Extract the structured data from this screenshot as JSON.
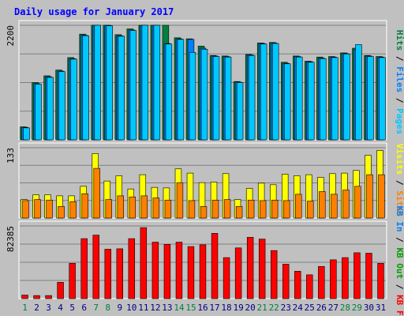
{
  "colors": {
    "background": "#c0c0c0",
    "frame": "#ffffff",
    "title": "#0000ff",
    "grid": "#808080",
    "pages": "#00c8ff",
    "files": "#0080ff",
    "hits": "#008040",
    "visits": "#ffff00",
    "sites": "#ff8000",
    "kb_f": "#ff0000",
    "kb_in": "#0080ff",
    "kb_out": "#00a000",
    "weekend_day": "#008040",
    "weekday_day": "#000080"
  },
  "chart_data": {
    "type": "bar",
    "title": "Daily usage for January 2017",
    "categories": [
      "1",
      "2",
      "3",
      "4",
      "5",
      "6",
      "7",
      "8",
      "9",
      "10",
      "11",
      "12",
      "13",
      "14",
      "15",
      "16",
      "17",
      "18",
      "19",
      "20",
      "21",
      "22",
      "23",
      "24",
      "25",
      "26",
      "27",
      "28",
      "29",
      "30",
      "31"
    ],
    "weekend_days": [
      "1",
      "7",
      "8",
      "14",
      "15",
      "21",
      "22",
      "28",
      "29"
    ],
    "panels": [
      {
        "id": "top",
        "ymax": 2200,
        "ymax_label": "2200",
        "legend": [
          {
            "text": "Hits",
            "color_key": "hits"
          },
          {
            "text": "Files",
            "color_key": "files"
          },
          {
            "text": "Pages",
            "color_key": "pages"
          }
        ],
        "legend_separator": " / ",
        "series": [
          {
            "name": "Hits",
            "color_key": "hits",
            "values": [
              250,
              1100,
              1230,
              1340,
              1580,
              2030,
              2240,
              2220,
              2020,
              2130,
              2590,
              2270,
              2260,
              1960,
              1940,
              1800,
              1620,
              1610,
              1120,
              1640,
              1860,
              1870,
              1490,
              1610,
              1510,
              1590,
              1600,
              1670,
              1760,
              1620,
              1600
            ]
          },
          {
            "name": "Files",
            "color_key": "files",
            "values": [
              240,
              1080,
              1210,
              1320,
              1560,
              2010,
              2230,
              2200,
              2000,
              2110,
              2570,
              2240,
              1850,
              1940,
              1930,
              1760,
              1610,
              1600,
              1110,
              1630,
              1850,
              1860,
              1470,
              1600,
              1500,
              1570,
              1590,
              1660,
              1740,
              1610,
              1590
            ]
          },
          {
            "name": "Pages",
            "color_key": "pages",
            "values": [
              230,
              1070,
              1200,
              1310,
              1550,
              2000,
              2220,
              2190,
              1990,
              2100,
              2560,
              2230,
              1840,
              1930,
              1680,
              1740,
              1600,
              1590,
              1100,
              1620,
              1840,
              1850,
              1460,
              1590,
              1490,
              1560,
              1580,
              1650,
              1830,
              1600,
              1580
            ]
          }
        ]
      },
      {
        "id": "mid",
        "ymax": 133,
        "ymax_label": "133",
        "legend": [
          {
            "text": "Visits",
            "color_key": "visits"
          },
          {
            "text": "Sites",
            "color_key": "sites"
          }
        ],
        "legend_separator": " / ",
        "series": [
          {
            "name": "Visits",
            "color_key": "visits",
            "values": [
              35,
              44,
              44,
              42,
              42,
              60,
              122,
              70,
              80,
              55,
              82,
              58,
              57,
              93,
              85,
              67,
              68,
              84,
              35,
              56,
              66,
              63,
              83,
              80,
              82,
              77,
              84,
              85,
              90,
              119,
              128
            ]
          },
          {
            "name": "Sites",
            "color_key": "sites",
            "values": [
              33,
              35,
              34,
              22,
              31,
              46,
              94,
              35,
              42,
              40,
              42,
              38,
              34,
              67,
              33,
              22,
              34,
              35,
              22,
              34,
              33,
              34,
              33,
              45,
              32,
              50,
              45,
              53,
              60,
              82,
              82
            ]
          }
        ]
      },
      {
        "id": "bottom",
        "ymax": 82385,
        "ymax_label": "82385",
        "legend": [
          {
            "text": "KB In",
            "color_key": "kb_in"
          },
          {
            "text": "KB Out",
            "color_key": "kb_out"
          },
          {
            "text": "KB F",
            "color_key": "kb_f"
          }
        ],
        "legend_separator": " / ",
        "series": [
          {
            "name": "KB F",
            "color_key": "kb_f",
            "values": [
              4000,
              3500,
              3500,
              18500,
              40000,
              68000,
              72000,
              56000,
              56500,
              68000,
              80500,
              64000,
              61500,
              64000,
              59000,
              61000,
              74000,
              46500,
              57500,
              69500,
              67500,
              54500,
              39000,
              31000,
              27000,
              36500,
              44000,
              46500,
              52000,
              51500,
              40000
            ]
          }
        ]
      }
    ]
  }
}
